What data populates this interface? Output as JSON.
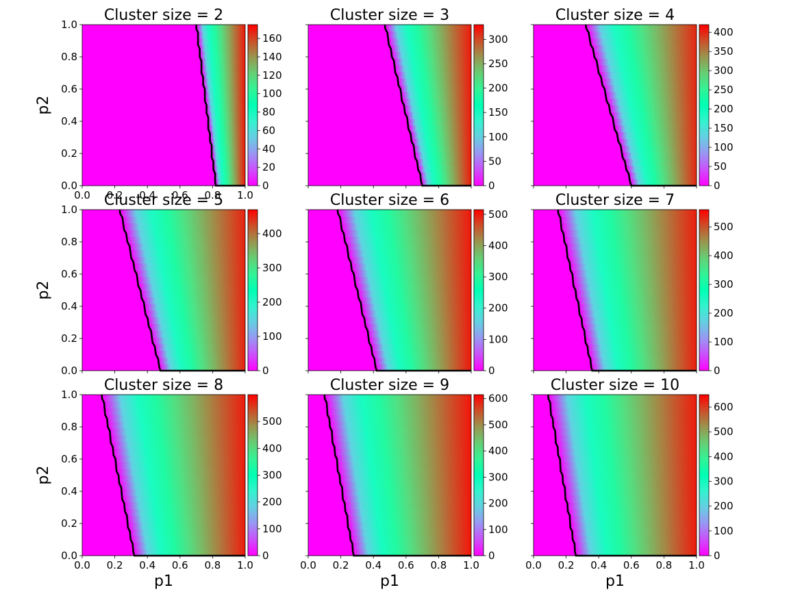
{
  "figure": {
    "xlabel": "p1",
    "ylabel": "p2",
    "colormap": "rainbow",
    "boundary_color": "#000000"
  },
  "chart_data": [
    {
      "type": "heatmap",
      "title": "Cluster size = 2",
      "xlabel": "",
      "ylabel": "p2",
      "xlim": [
        0,
        1
      ],
      "ylim": [
        0,
        1
      ],
      "x_ticks": [
        "0.0",
        "0.2",
        "0.4",
        "0.6",
        "0.8",
        "1.0"
      ],
      "y_ticks": [
        "0.0",
        "0.2",
        "0.4",
        "0.6",
        "0.8",
        "1.0"
      ],
      "colorbar": {
        "range": [
          0,
          175
        ],
        "ticks": [
          0,
          20,
          40,
          60,
          80,
          100,
          120,
          140,
          160
        ]
      },
      "boundary": {
        "x_at_p2_0": 0.82,
        "x_at_p2_1": 0.7
      },
      "max_at_p1_1": 170
    },
    {
      "type": "heatmap",
      "title": "Cluster size = 3",
      "xlabel": "",
      "ylabel": "",
      "xlim": [
        0,
        1
      ],
      "ylim": [
        0,
        1
      ],
      "x_ticks": [],
      "y_ticks": [],
      "colorbar": {
        "range": [
          0,
          330
        ],
        "ticks": [
          0,
          50,
          100,
          150,
          200,
          250,
          300
        ]
      },
      "boundary": {
        "x_at_p2_0": 0.7,
        "x_at_p2_1": 0.47
      },
      "max_at_p1_1": 320
    },
    {
      "type": "heatmap",
      "title": "Cluster size = 4",
      "xlabel": "",
      "ylabel": "",
      "xlim": [
        0,
        1
      ],
      "ylim": [
        0,
        1
      ],
      "x_ticks": [],
      "y_ticks": [],
      "colorbar": {
        "range": [
          0,
          420
        ],
        "ticks": [
          0,
          50,
          100,
          150,
          200,
          250,
          300,
          350,
          400
        ]
      },
      "boundary": {
        "x_at_p2_0": 0.6,
        "x_at_p2_1": 0.32
      },
      "max_at_p1_1": 400
    },
    {
      "type": "heatmap",
      "title": "Cluster size = 5",
      "xlabel": "",
      "ylabel": "p2",
      "xlim": [
        0,
        1
      ],
      "ylim": [
        0,
        1
      ],
      "x_ticks": [],
      "y_ticks": [
        "0.0",
        "0.2",
        "0.4",
        "0.6",
        "0.8",
        "1.0"
      ],
      "colorbar": {
        "range": [
          0,
          470
        ],
        "ticks": [
          0,
          100,
          200,
          300,
          400
        ]
      },
      "boundary": {
        "x_at_p2_0": 0.48,
        "x_at_p2_1": 0.23
      },
      "max_at_p1_1": 450
    },
    {
      "type": "heatmap",
      "title": "Cluster size = 6",
      "xlabel": "",
      "ylabel": "",
      "xlim": [
        0,
        1
      ],
      "ylim": [
        0,
        1
      ],
      "x_ticks": [],
      "y_ticks": [],
      "colorbar": {
        "range": [
          0,
          515
        ],
        "ticks": [
          0,
          100,
          200,
          300,
          400,
          500
        ]
      },
      "boundary": {
        "x_at_p2_0": 0.42,
        "x_at_p2_1": 0.18
      },
      "max_at_p1_1": 500
    },
    {
      "type": "heatmap",
      "title": "Cluster size = 7",
      "xlabel": "",
      "ylabel": "",
      "xlim": [
        0,
        1
      ],
      "ylim": [
        0,
        1
      ],
      "x_ticks": [],
      "y_ticks": [],
      "colorbar": {
        "range": [
          0,
          560
        ],
        "ticks": [
          0,
          100,
          200,
          300,
          400,
          500
        ]
      },
      "boundary": {
        "x_at_p2_0": 0.36,
        "x_at_p2_1": 0.15
      },
      "max_at_p1_1": 540
    },
    {
      "type": "heatmap",
      "title": "Cluster size = 8",
      "xlabel": "p1",
      "ylabel": "p2",
      "xlim": [
        0,
        1
      ],
      "ylim": [
        0,
        1
      ],
      "x_ticks": [
        "0.0",
        "0.2",
        "0.4",
        "0.6",
        "0.8",
        "1.0"
      ],
      "y_ticks": [
        "0.0",
        "0.2",
        "0.4",
        "0.6",
        "0.8",
        "1.0"
      ],
      "colorbar": {
        "range": [
          0,
          600
        ],
        "ticks": [
          0,
          100,
          200,
          300,
          400,
          500
        ]
      },
      "boundary": {
        "x_at_p2_0": 0.32,
        "x_at_p2_1": 0.12
      },
      "max_at_p1_1": 580
    },
    {
      "type": "heatmap",
      "title": "Cluster size = 9",
      "xlabel": "p1",
      "ylabel": "",
      "xlim": [
        0,
        1
      ],
      "ylim": [
        0,
        1
      ],
      "x_ticks": [
        "0.0",
        "0.2",
        "0.4",
        "0.6",
        "0.8",
        "1.0"
      ],
      "y_ticks": [],
      "colorbar": {
        "range": [
          0,
          615
        ],
        "ticks": [
          0,
          100,
          200,
          300,
          400,
          500,
          600
        ]
      },
      "boundary": {
        "x_at_p2_0": 0.28,
        "x_at_p2_1": 0.1
      },
      "max_at_p1_1": 600
    },
    {
      "type": "heatmap",
      "title": "Cluster size = 10",
      "xlabel": "p1",
      "ylabel": "",
      "xlim": [
        0,
        1
      ],
      "ylim": [
        0,
        1
      ],
      "x_ticks": [
        "0.0",
        "0.2",
        "0.4",
        "0.6",
        "0.8",
        "1.0"
      ],
      "y_ticks": [],
      "colorbar": {
        "range": [
          0,
          650
        ],
        "ticks": [
          0,
          100,
          200,
          300,
          400,
          500,
          600
        ]
      },
      "boundary": {
        "x_at_p2_0": 0.26,
        "x_at_p2_1": 0.09
      },
      "max_at_p1_1": 630
    }
  ]
}
